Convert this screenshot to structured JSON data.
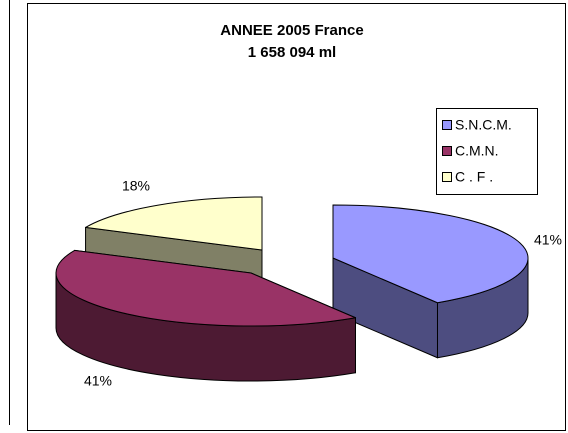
{
  "chart_data": {
    "type": "pie",
    "title": "ANNEE 2005 France",
    "subtitle": "1 658 094 ml",
    "categories": [
      "S.N.C.M.",
      "C.M.N.",
      "C . F ."
    ],
    "values": [
      41,
      41,
      18
    ],
    "value_labels": [
      "41%",
      "41%",
      "18%"
    ],
    "colors": [
      "#9999ff",
      "#993366",
      "#ffffcc"
    ],
    "legend": "right",
    "three_d": true,
    "exploded": true
  }
}
